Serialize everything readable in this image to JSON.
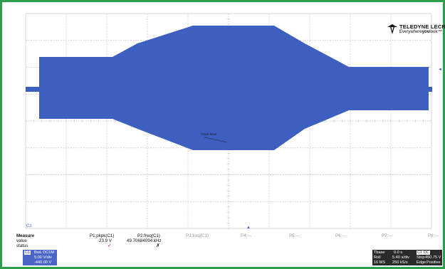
{
  "brand": {
    "name": "TELEDYNE LECROY",
    "tagline_plain": "Everywhere",
    "tagline_bold": "you",
    "tagline_end": "look",
    "tm": "™",
    "logo_icon": "teledyne-logo-icon",
    "accent": "#111111"
  },
  "plot": {
    "trace_color": "#3d5fbf",
    "grid_color": "#c8c8c8",
    "trace_label": "Trace label",
    "ground_marker": "C1",
    "trigger_marker": "▲",
    "right_marker": "◄"
  },
  "measure": {
    "row_labels": [
      "Measure",
      "value",
      "status"
    ],
    "params": [
      {
        "name": "P1:pkpk(C1)",
        "value": "23.9 V",
        "status": "✓"
      },
      {
        "name": "P2:freq(C1)",
        "value": "49.70684094 kHz",
        "status": "✗"
      },
      {
        "name": "P3:freq(C1)",
        "value": "",
        "status": ""
      },
      {
        "name": "P4:---",
        "value": "",
        "status": ""
      },
      {
        "name": "P5:---",
        "value": "",
        "status": ""
      },
      {
        "name": "P6:---",
        "value": "",
        "status": ""
      },
      {
        "name": "P7:---",
        "value": "",
        "status": ""
      },
      {
        "name": "P8:---",
        "value": "",
        "status": ""
      }
    ]
  },
  "channel": {
    "name": "C1",
    "coupling": "BwL DC1M",
    "vdiv": "5.00 V/div",
    "offset": "-440.00 V",
    "color": "#4a64c8"
  },
  "timebase": {
    "label": "Tbase",
    "trigger_mode": "C1 DC",
    "roll": "Roll",
    "tdiv": "5.40 s/div",
    "samples": "16 MS",
    "rate": "250 kS/s",
    "offset_value": "0.0 s",
    "trig_level": "450.75 V",
    "stop_label": "Stop",
    "edge_label": "Edge",
    "positive": "Positive"
  }
}
